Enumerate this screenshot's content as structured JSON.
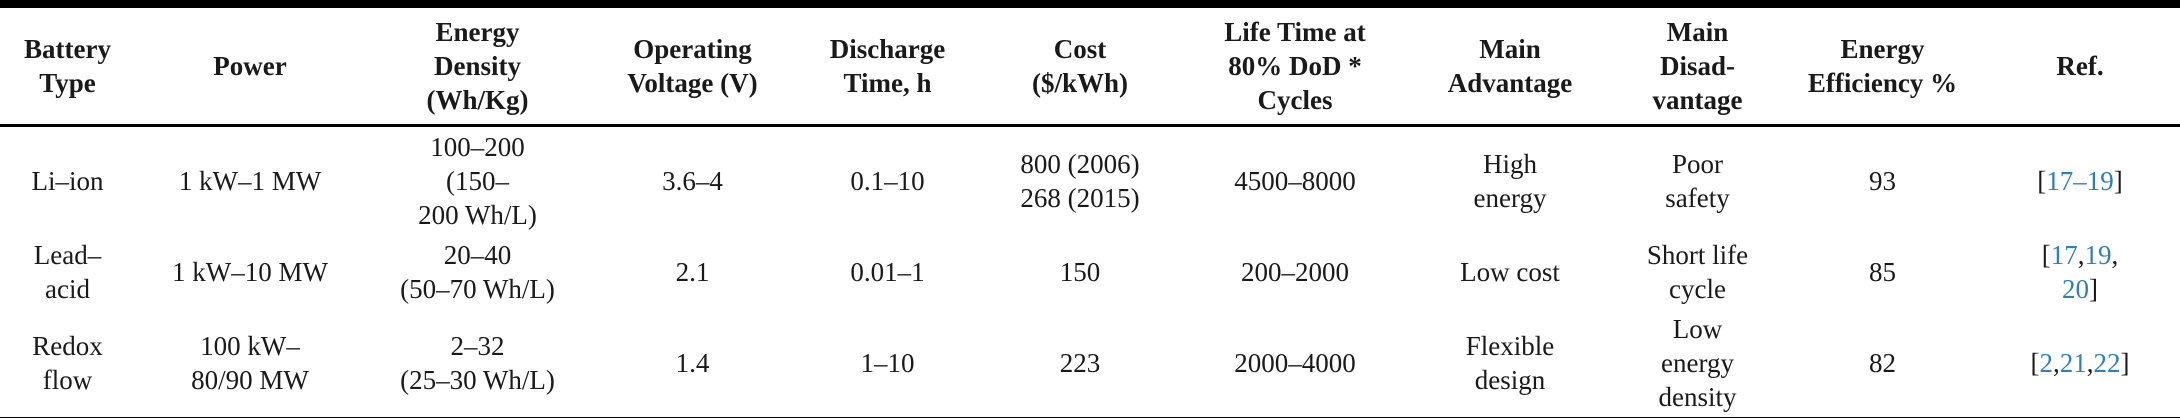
{
  "table": {
    "colors": {
      "link_blue": "#2e7fc1",
      "text": "#1a1a1a",
      "rule": "#000000"
    },
    "columns": [
      {
        "key": "battery_type",
        "label": "Battery\nType"
      },
      {
        "key": "power",
        "label": "Power"
      },
      {
        "key": "energy_density",
        "label": "Energy\nDensity\n(Wh/Kg)"
      },
      {
        "key": "operating_voltage",
        "label": "Operating\nVoltage (V)"
      },
      {
        "key": "discharge_time",
        "label": "Discharge\nTime, h"
      },
      {
        "key": "cost",
        "label": "Cost\n($/kWh)"
      },
      {
        "key": "life_time",
        "label": "Life Time at\n80% DoD *\nCycles"
      },
      {
        "key": "main_advantage",
        "label": "Main\nAdvantage"
      },
      {
        "key": "main_disadvantage",
        "label": "Main\nDisad-\nvantage"
      },
      {
        "key": "energy_efficiency",
        "label": "Energy\nEfficiency %"
      },
      {
        "key": "ref",
        "label": "Ref."
      }
    ],
    "rows": [
      {
        "battery_type": "Li–ion",
        "power": "1 kW–1 MW",
        "energy_density": "100–200\n(150–\n200 Wh/L)",
        "operating_voltage": "3.6–4",
        "discharge_time": "0.1–10",
        "cost": "800 (2006)\n268 (2015)",
        "life_time": "4500–8000",
        "main_advantage": "High\nenergy",
        "main_disadvantage": "Poor\nsafety",
        "energy_efficiency": "93",
        "ref_parts": [
          {
            "t": "[",
            "blue": false
          },
          {
            "t": "17–19",
            "blue": true
          },
          {
            "t": "]",
            "blue": false
          }
        ]
      },
      {
        "battery_type": "Lead–\nacid",
        "power": "1 kW–10 MW",
        "energy_density": "20–40\n(50–70 Wh/L)",
        "operating_voltage": "2.1",
        "discharge_time": "0.01–1",
        "cost": "150",
        "life_time": "200–2000",
        "main_advantage": "Low cost",
        "main_disadvantage": "Short life\ncycle",
        "energy_efficiency": "85",
        "ref_parts": [
          {
            "t": "[",
            "blue": false
          },
          {
            "t": "17",
            "blue": true
          },
          {
            "t": ",",
            "blue": false
          },
          {
            "t": "19",
            "blue": true
          },
          {
            "t": ",\n",
            "blue": false
          },
          {
            "t": "20",
            "blue": true
          },
          {
            "t": "]",
            "blue": false
          }
        ]
      },
      {
        "battery_type": "Redox\nflow",
        "power": "100 kW–\n80/90 MW",
        "energy_density": "2–32\n(25–30 Wh/L)",
        "operating_voltage": "1.4",
        "discharge_time": "1–10",
        "cost": "223",
        "life_time": "2000–4000",
        "main_advantage": "Flexible\ndesign",
        "main_disadvantage": "Low\nenergy\ndensity",
        "energy_efficiency": "82",
        "ref_parts": [
          {
            "t": "[",
            "blue": false
          },
          {
            "t": "2",
            "blue": true
          },
          {
            "t": ",",
            "blue": false
          },
          {
            "t": "21",
            "blue": true
          },
          {
            "t": ",",
            "blue": false
          },
          {
            "t": "22",
            "blue": true
          },
          {
            "t": "]",
            "blue": false
          }
        ]
      }
    ]
  }
}
